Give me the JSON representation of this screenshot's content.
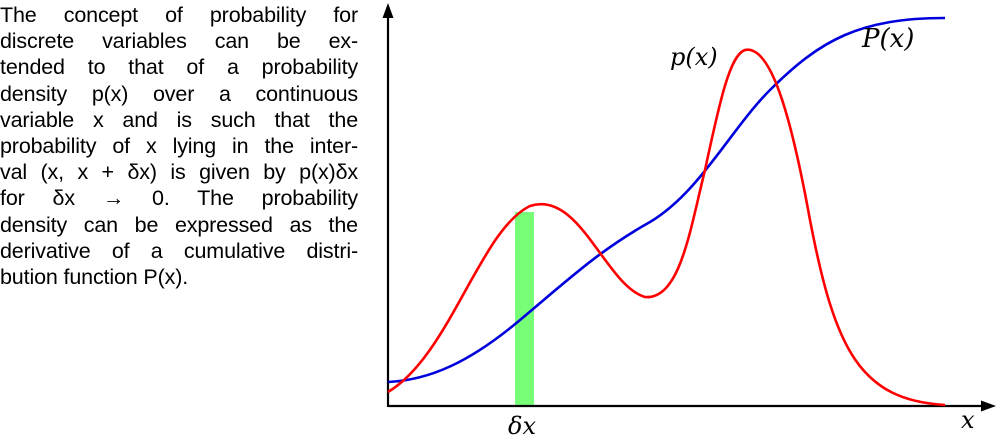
{
  "caption": {
    "lines": [
      "The concept of probability for",
      "discrete variables can be ex-",
      "tended to that of a probability",
      "density p(x) over a continuous",
      "variable x and is such that the",
      "probability of x lying in the inter-",
      "val (x, x + δx) is given by p(x)δx",
      "for δx → 0. The probability",
      "density can be expressed as the",
      "derivative of a cumulative distri-",
      "bution function P(x)."
    ]
  },
  "figure": {
    "label_px": "p(x)",
    "label_Px": "P(x)",
    "label_x_axis": "x",
    "label_dx": "δx",
    "colors": {
      "density": "#ff0000",
      "cumulative": "#0000dd",
      "interval": "#77ff77",
      "axis": "#000000"
    }
  }
}
